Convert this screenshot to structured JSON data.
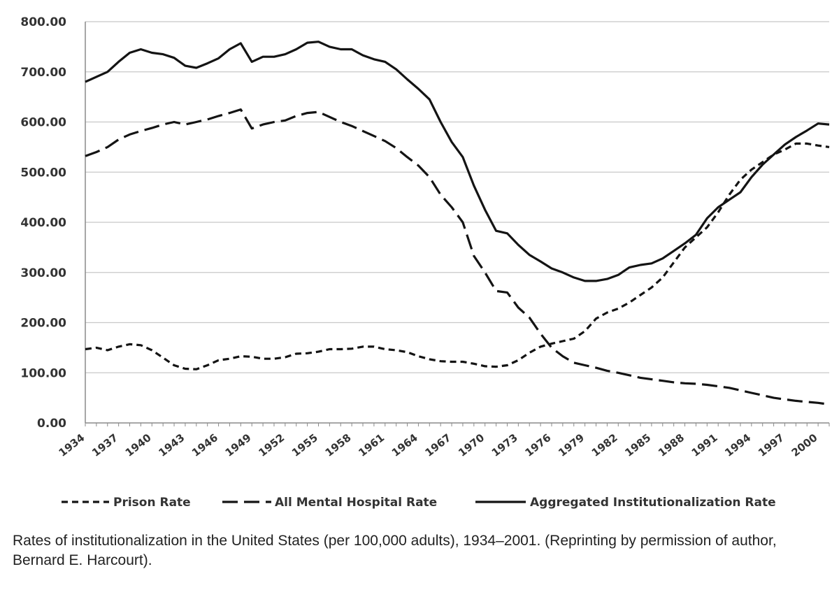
{
  "caption": "Rates of institutionalization in the United States (per 100,000 adults), 1934–2001. (Reprinting by permission of author, Bernard E. Harcourt).",
  "chart_data": {
    "type": "line",
    "title": "",
    "xlabel": "",
    "ylabel": "",
    "x": [
      1934,
      1935,
      1936,
      1937,
      1938,
      1939,
      1940,
      1941,
      1942,
      1943,
      1944,
      1945,
      1946,
      1947,
      1948,
      1949,
      1950,
      1951,
      1952,
      1953,
      1954,
      1955,
      1956,
      1957,
      1958,
      1959,
      1960,
      1961,
      1962,
      1963,
      1964,
      1965,
      1966,
      1967,
      1968,
      1969,
      1970,
      1971,
      1972,
      1973,
      1974,
      1975,
      1976,
      1977,
      1978,
      1979,
      1980,
      1981,
      1982,
      1983,
      1984,
      1985,
      1986,
      1987,
      1988,
      1989,
      1990,
      1991,
      1992,
      1993,
      1994,
      1995,
      1996,
      1997,
      1998,
      1999,
      2000,
      2001
    ],
    "x_tick_labels": [
      "1934",
      "1937",
      "1940",
      "1943",
      "1946",
      "1949",
      "1952",
      "1955",
      "1958",
      "1961",
      "1964",
      "1967",
      "1970",
      "1973",
      "1976",
      "1979",
      "1982",
      "1985",
      "1988",
      "1991",
      "1994",
      "1997",
      "2000"
    ],
    "y_tick_labels": [
      "0.00",
      "100.00",
      "200.00",
      "300.00",
      "400.00",
      "500.00",
      "600.00",
      "700.00",
      "800.00"
    ],
    "ylim": [
      0,
      800
    ],
    "grid": "horizontal",
    "legend_position": "bottom",
    "series": [
      {
        "name": "Prison Rate",
        "style": "short-dash",
        "values": [
          147,
          150,
          145,
          152,
          157,
          155,
          145,
          130,
          115,
          108,
          107,
          115,
          125,
          128,
          133,
          132,
          128,
          128,
          131,
          138,
          139,
          142,
          147,
          147,
          148,
          152,
          152,
          147,
          145,
          141,
          133,
          127,
          123,
          122,
          122,
          118,
          113,
          112,
          115,
          125,
          140,
          152,
          158,
          163,
          168,
          183,
          208,
          220,
          228,
          240,
          255,
          270,
          290,
          320,
          350,
          370,
          390,
          420,
          455,
          485,
          505,
          520,
          535,
          545,
          557,
          557,
          553,
          550
        ]
      },
      {
        "name": "All Mental Hospital Rate",
        "style": "long-dash",
        "values": [
          532,
          540,
          550,
          565,
          575,
          582,
          588,
          595,
          600,
          595,
          600,
          605,
          612,
          618,
          625,
          587,
          595,
          600,
          603,
          612,
          618,
          620,
          610,
          600,
          592,
          582,
          572,
          562,
          548,
          530,
          513,
          490,
          455,
          430,
          400,
          333,
          300,
          263,
          260,
          230,
          210,
          178,
          150,
          133,
          120,
          115,
          110,
          104,
          100,
          95,
          90,
          87,
          84,
          81,
          79,
          78,
          76,
          73,
          70,
          65,
          60,
          55,
          50,
          47,
          44,
          42,
          40,
          37
        ]
      },
      {
        "name": "Aggregated Institutionalization Rate",
        "style": "solid",
        "values": [
          680,
          690,
          700,
          720,
          738,
          745,
          738,
          735,
          728,
          712,
          708,
          717,
          727,
          745,
          757,
          720,
          730,
          730,
          735,
          745,
          758,
          760,
          750,
          745,
          745,
          733,
          725,
          720,
          705,
          685,
          666,
          645,
          600,
          560,
          530,
          473,
          425,
          383,
          378,
          355,
          335,
          322,
          308,
          300,
          290,
          283,
          283,
          287,
          295,
          310,
          315,
          318,
          328,
          343,
          358,
          375,
          408,
          430,
          445,
          460,
          490,
          515,
          535,
          555,
          570,
          583,
          597,
          595
        ]
      }
    ]
  }
}
